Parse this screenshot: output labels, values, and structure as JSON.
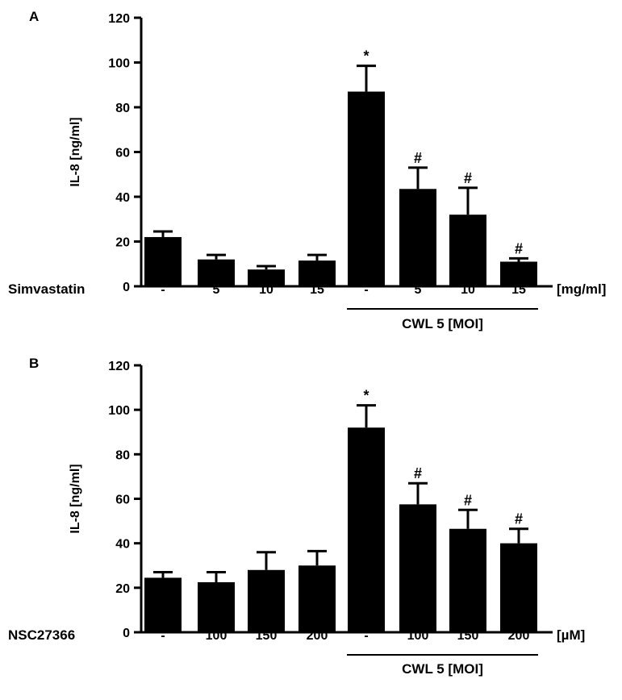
{
  "chart_data": [
    {
      "type": "bar",
      "panel_label": "A",
      "ylabel": "IL-8 [ng/ml]",
      "ylim": [
        0,
        120
      ],
      "yticks": [
        "0",
        "20",
        "40",
        "60",
        "80",
        "100",
        "120"
      ],
      "row_label": "Simvastatin",
      "unit_label": "[mg/ml]",
      "group_label": "CWL 5 [MOI]",
      "categories": [
        "-",
        "5",
        "10",
        "15",
        "-",
        "5",
        "10",
        "15"
      ],
      "values": [
        22,
        12,
        7.5,
        11.5,
        87,
        43.5,
        32,
        11
      ],
      "errors": [
        2.5,
        2,
        1.5,
        2.5,
        11.5,
        9.5,
        12,
        1.5
      ],
      "annotations": [
        "",
        "",
        "",
        "",
        "*",
        "#",
        "#",
        "#"
      ],
      "color": "#000000"
    },
    {
      "type": "bar",
      "panel_label": "B",
      "ylabel": "IL-8 [ng/ml]",
      "ylim": [
        0,
        120
      ],
      "yticks": [
        "0",
        "20",
        "40",
        "60",
        "80",
        "100",
        "120"
      ],
      "row_label": "NSC27366",
      "unit_label": "[µM]",
      "group_label": "CWL 5 [MOI]",
      "categories": [
        "-",
        "100",
        "150",
        "200",
        "-",
        "100",
        "150",
        "200"
      ],
      "values": [
        24.5,
        22.5,
        28,
        30,
        92,
        57.5,
        46.5,
        40
      ],
      "errors": [
        2.5,
        4.5,
        8,
        6.5,
        10,
        9.5,
        8.5,
        6.5
      ],
      "annotations": [
        "",
        "",
        "",
        "",
        "*",
        "#",
        "#",
        "#"
      ],
      "color": "#000000"
    }
  ]
}
